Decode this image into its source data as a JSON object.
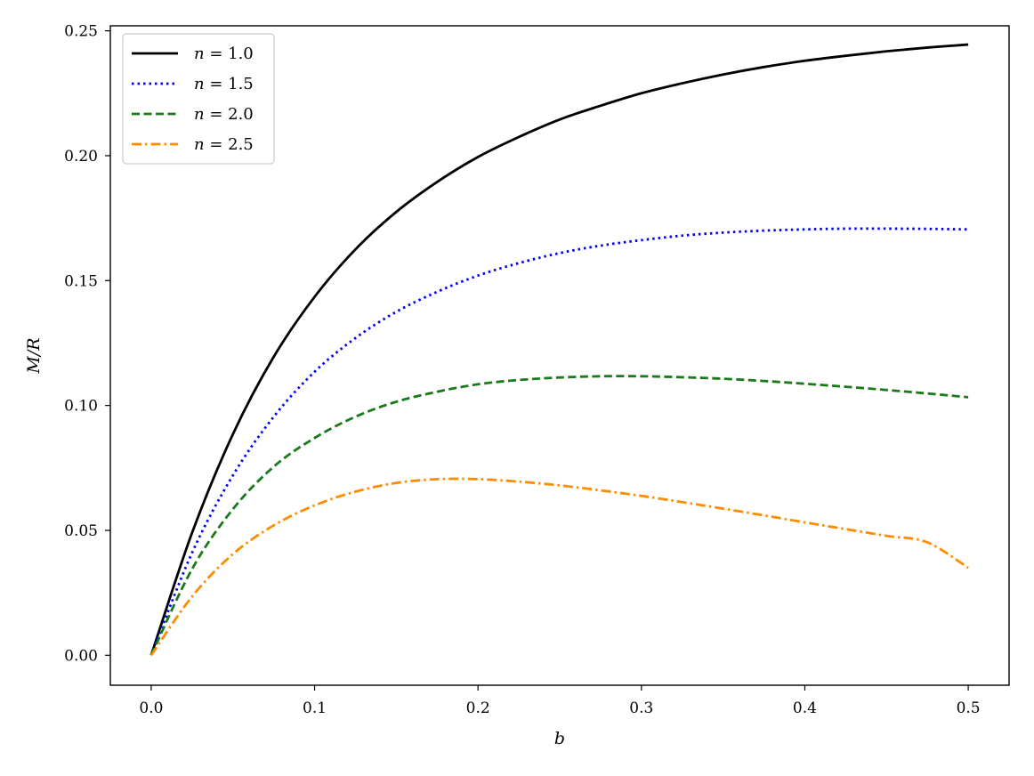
{
  "chart_data": {
    "type": "line",
    "xlabel": "b",
    "ylabel": "M/R",
    "xlim": [
      -0.025,
      0.525
    ],
    "ylim": [
      -0.012,
      0.252
    ],
    "xticks": [
      0.0,
      0.1,
      0.2,
      0.3,
      0.4,
      0.5
    ],
    "xtick_labels": [
      "0.0",
      "0.1",
      "0.2",
      "0.3",
      "0.4",
      "0.5"
    ],
    "yticks": [
      0.0,
      0.05,
      0.1,
      0.15,
      0.2,
      0.25
    ],
    "ytick_labels": [
      "0.00",
      "0.05",
      "0.10",
      "0.15",
      "0.20",
      "0.25"
    ],
    "grid": false,
    "legend_position": "top-left",
    "x": [
      0.0,
      0.025,
      0.05,
      0.075,
      0.1,
      0.125,
      0.15,
      0.175,
      0.2,
      0.225,
      0.25,
      0.275,
      0.3,
      0.325,
      0.35,
      0.375,
      0.4,
      0.425,
      0.45,
      0.475,
      0.5
    ],
    "series": [
      {
        "name_prefix": "n = ",
        "name_value": "1.0",
        "color": "#000000",
        "dash": "solid",
        "values": [
          0.0,
          0.049,
          0.0885,
          0.1195,
          0.1435,
          0.1625,
          0.1775,
          0.1895,
          0.1995,
          0.2075,
          0.2145,
          0.22,
          0.225,
          0.229,
          0.2325,
          0.2355,
          0.238,
          0.24,
          0.2418,
          0.2433,
          0.2445
        ]
      },
      {
        "name_prefix": "n = ",
        "name_value": "1.5",
        "color": "#0000ee",
        "dash": "dotted",
        "values": [
          0.0,
          0.041,
          0.072,
          0.0955,
          0.1135,
          0.127,
          0.1375,
          0.1455,
          0.152,
          0.157,
          0.161,
          0.164,
          0.1662,
          0.168,
          0.1692,
          0.17,
          0.1705,
          0.1708,
          0.1708,
          0.1707,
          0.1705
        ]
      },
      {
        "name_prefix": "n = ",
        "name_value": "2.0",
        "color": "#1a7a1a",
        "dash": "dashed",
        "values": [
          0.0,
          0.0345,
          0.0585,
          0.0755,
          0.087,
          0.0955,
          0.1015,
          0.1055,
          0.1085,
          0.1102,
          0.1112,
          0.1117,
          0.1117,
          0.1113,
          0.1107,
          0.1098,
          0.1087,
          0.1075,
          0.1062,
          0.1048,
          0.1033
        ]
      },
      {
        "name_prefix": "n = ",
        "name_value": "2.5",
        "color": "#ff8c00",
        "dash": "dashdot",
        "values": [
          0.0,
          0.0235,
          0.0405,
          0.052,
          0.06,
          0.0655,
          0.069,
          0.0705,
          0.0705,
          0.0695,
          0.068,
          0.066,
          0.0638,
          0.0613,
          0.0587,
          0.056,
          0.0532,
          0.0505,
          0.0478,
          0.0452,
          0.035
        ]
      }
    ]
  }
}
